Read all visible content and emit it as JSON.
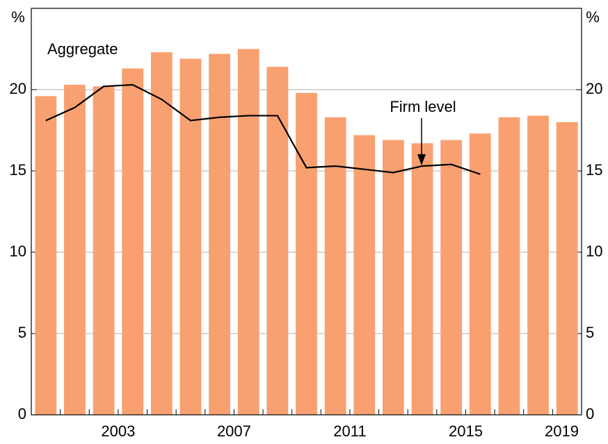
{
  "chart_data": {
    "type": "bar",
    "y_unit_left": "%",
    "y_unit_right": "%",
    "annotations": [
      "Aggregate",
      "Firm level"
    ],
    "x": [
      2000.5,
      2001.5,
      2002.5,
      2003.5,
      2004.5,
      2005.5,
      2006.5,
      2007.5,
      2008.5,
      2009.5,
      2010.5,
      2011.5,
      2012.5,
      2013.5,
      2014.5,
      2015.5,
      2016.5,
      2017.5,
      2018.5
    ],
    "series": [
      {
        "name": "Aggregate",
        "type": "bar",
        "color": "#f9a070",
        "values": [
          19.6,
          20.3,
          20.2,
          21.3,
          22.3,
          21.9,
          22.2,
          22.5,
          21.4,
          19.8,
          18.3,
          17.2,
          16.9,
          16.7,
          16.9,
          17.3,
          18.3,
          18.4,
          18.0
        ]
      },
      {
        "name": "Firm level",
        "type": "line",
        "color": "#000000",
        "values": [
          18.1,
          18.9,
          20.2,
          20.3,
          19.4,
          18.1,
          18.3,
          18.4,
          18.4,
          15.2,
          15.3,
          15.1,
          14.9,
          15.3,
          15.4,
          14.8,
          null,
          null,
          null
        ]
      }
    ],
    "xlim": [
      2000,
      2019
    ],
    "xticks": [
      2003,
      2007,
      2011,
      2015,
      2019
    ],
    "ylim": [
      0,
      25
    ],
    "yticks": [
      0,
      5,
      10,
      15,
      20
    ],
    "y2lim": [
      0,
      25
    ],
    "y2ticks": [
      0,
      5,
      10,
      15,
      20
    ],
    "grid": true
  }
}
